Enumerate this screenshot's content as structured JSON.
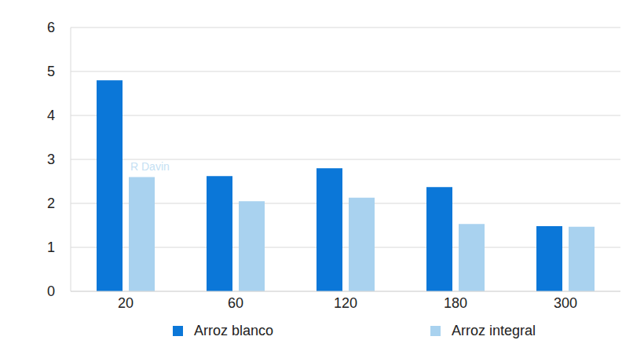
{
  "chart_data": {
    "type": "bar",
    "categories": [
      "20",
      "60",
      "120",
      "180",
      "300"
    ],
    "series": [
      {
        "name": "Arroz blanco",
        "color": "#0b77d8",
        "values": [
          4.8,
          2.62,
          2.8,
          2.37,
          1.48
        ]
      },
      {
        "name": "Arroz integral",
        "color": "#a9d2ef",
        "values": [
          2.6,
          2.05,
          2.13,
          1.53,
          1.47
        ]
      }
    ],
    "ylim": [
      0,
      6
    ],
    "yticks": [
      0,
      1,
      2,
      3,
      4,
      5,
      6
    ],
    "grid": true,
    "legend": "bottom",
    "annotation": "R Davin"
  }
}
